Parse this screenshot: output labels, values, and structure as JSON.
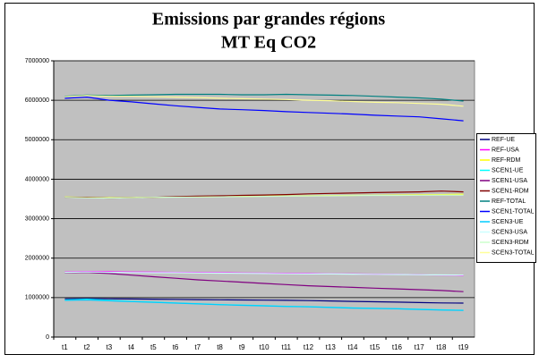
{
  "chart_data": {
    "type": "line",
    "title": [
      "Emissions par grandes régions",
      "MT Eq CO2"
    ],
    "categories": [
      "t1",
      "t2",
      "t3",
      "t4",
      "t5",
      "t6",
      "t7",
      "t8",
      "t9",
      "t10",
      "t11",
      "t12",
      "t13",
      "t14",
      "t15",
      "t16",
      "t17",
      "t18",
      "t19"
    ],
    "ylim": [
      0,
      7000000
    ],
    "yticks": [
      0,
      1000000,
      2000000,
      3000000,
      4000000,
      5000000,
      6000000,
      7000000
    ],
    "grid": true,
    "legend": "right",
    "series": [
      {
        "name": "REF-UE",
        "color": "#000080",
        "values": [
          970000,
          975000,
          970000,
          965000,
          960000,
          955000,
          950000,
          945000,
          940000,
          935000,
          930000,
          925000,
          915000,
          905000,
          895000,
          885000,
          875000,
          865000,
          860000
        ]
      },
      {
        "name": "REF-USA",
        "color": "#FF00FF",
        "values": [
          1650000,
          1660000,
          1655000,
          1650000,
          1645000,
          1640000,
          1635000,
          1630000,
          1625000,
          1620000,
          1615000,
          1610000,
          1605000,
          1600000,
          1595000,
          1590000,
          1580000,
          1570000,
          1560000
        ]
      },
      {
        "name": "REF-RDM",
        "color": "#FFFF00",
        "values": [
          3550000,
          3540000,
          3530000,
          3535000,
          3540000,
          3550000,
          3555000,
          3560000,
          3565000,
          3570000,
          3575000,
          3580000,
          3585000,
          3590000,
          3595000,
          3600000,
          3605000,
          3610000,
          3620000
        ]
      },
      {
        "name": "SCEN1-UE",
        "color": "#00FFFF",
        "values": [
          940000,
          960000,
          930000,
          905000,
          885000,
          865000,
          845000,
          825000,
          810000,
          795000,
          780000,
          770000,
          755000,
          740000,
          730000,
          720000,
          705000,
          690000,
          680000
        ]
      },
      {
        "name": "SCEN1-USA",
        "color": "#800080",
        "values": [
          1630000,
          1640000,
          1610000,
          1570000,
          1530000,
          1490000,
          1450000,
          1420000,
          1390000,
          1360000,
          1330000,
          1300000,
          1280000,
          1260000,
          1240000,
          1220000,
          1200000,
          1180000,
          1150000
        ]
      },
      {
        "name": "SCEN1-RDM",
        "color": "#800000",
        "values": [
          3540000,
          3540000,
          3520000,
          3530000,
          3540000,
          3560000,
          3570000,
          3580000,
          3590000,
          3600000,
          3610000,
          3630000,
          3640000,
          3650000,
          3660000,
          3670000,
          3680000,
          3700000,
          3680000
        ]
      },
      {
        "name": "REF-TOTAL",
        "color": "#008080",
        "values": [
          6100000,
          6130000,
          6120000,
          6130000,
          6140000,
          6150000,
          6150000,
          6150000,
          6140000,
          6140000,
          6150000,
          6140000,
          6130000,
          6120000,
          6100000,
          6080000,
          6060000,
          6030000,
          5980000
        ]
      },
      {
        "name": "SCEN1-TOTAL",
        "color": "#0000FF",
        "values": [
          6050000,
          6080000,
          6000000,
          5960000,
          5910000,
          5860000,
          5820000,
          5780000,
          5760000,
          5740000,
          5710000,
          5690000,
          5670000,
          5650000,
          5620000,
          5600000,
          5580000,
          5530000,
          5480000
        ]
      },
      {
        "name": "SCEN3-UE",
        "color": "#00CCFF",
        "values": [
          930000,
          940000,
          920000,
          900000,
          880000,
          860000,
          840000,
          820000,
          805000,
          790000,
          775000,
          765000,
          750000,
          735000,
          725000,
          715000,
          700000,
          685000,
          675000
        ]
      },
      {
        "name": "SCEN3-USA",
        "color": "#CCFFFF",
        "values": [
          1640000,
          1650000,
          1640000,
          1635000,
          1630000,
          1630000,
          1625000,
          1620000,
          1615000,
          1610000,
          1605000,
          1600000,
          1600000,
          1595000,
          1590000,
          1585000,
          1580000,
          1575000,
          1570000
        ]
      },
      {
        "name": "SCEN3-RDM",
        "color": "#CCFFCC",
        "values": [
          3540000,
          3530000,
          3520000,
          3530000,
          3540000,
          3545000,
          3550000,
          3555000,
          3560000,
          3565000,
          3570000,
          3575000,
          3580000,
          3585000,
          3590000,
          3590000,
          3595000,
          3600000,
          3600000
        ]
      },
      {
        "name": "SCEN3-TOTAL",
        "color": "#FFFF99",
        "values": [
          6090000,
          6120000,
          6100000,
          6100000,
          6090000,
          6080000,
          6070000,
          6050000,
          6040000,
          6030000,
          6020000,
          6000000,
          5990000,
          5970000,
          5950000,
          5940000,
          5920000,
          5900000,
          5850000
        ]
      }
    ]
  }
}
